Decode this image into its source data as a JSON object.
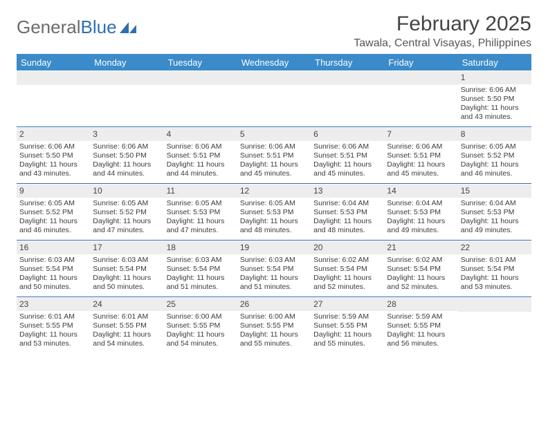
{
  "logo": {
    "text_gray": "General",
    "text_blue": "Blue"
  },
  "title": "February 2025",
  "location": "Tawala, Central Visayas, Philippines",
  "colors": {
    "header_bg": "#3b8bca",
    "header_text": "#ffffff",
    "rule": "#2f6fb2",
    "daynum_bg": "#ededed",
    "text": "#3a3a3a"
  },
  "day_names": [
    "Sunday",
    "Monday",
    "Tuesday",
    "Wednesday",
    "Thursday",
    "Friday",
    "Saturday"
  ],
  "weeks": [
    [
      null,
      null,
      null,
      null,
      null,
      null,
      {
        "n": "1",
        "sr": "Sunrise: 6:06 AM",
        "ss": "Sunset: 5:50 PM",
        "dl": "Daylight: 11 hours and 43 minutes."
      }
    ],
    [
      {
        "n": "2",
        "sr": "Sunrise: 6:06 AM",
        "ss": "Sunset: 5:50 PM",
        "dl": "Daylight: 11 hours and 43 minutes."
      },
      {
        "n": "3",
        "sr": "Sunrise: 6:06 AM",
        "ss": "Sunset: 5:50 PM",
        "dl": "Daylight: 11 hours and 44 minutes."
      },
      {
        "n": "4",
        "sr": "Sunrise: 6:06 AM",
        "ss": "Sunset: 5:51 PM",
        "dl": "Daylight: 11 hours and 44 minutes."
      },
      {
        "n": "5",
        "sr": "Sunrise: 6:06 AM",
        "ss": "Sunset: 5:51 PM",
        "dl": "Daylight: 11 hours and 45 minutes."
      },
      {
        "n": "6",
        "sr": "Sunrise: 6:06 AM",
        "ss": "Sunset: 5:51 PM",
        "dl": "Daylight: 11 hours and 45 minutes."
      },
      {
        "n": "7",
        "sr": "Sunrise: 6:06 AM",
        "ss": "Sunset: 5:51 PM",
        "dl": "Daylight: 11 hours and 45 minutes."
      },
      {
        "n": "8",
        "sr": "Sunrise: 6:05 AM",
        "ss": "Sunset: 5:52 PM",
        "dl": "Daylight: 11 hours and 46 minutes."
      }
    ],
    [
      {
        "n": "9",
        "sr": "Sunrise: 6:05 AM",
        "ss": "Sunset: 5:52 PM",
        "dl": "Daylight: 11 hours and 46 minutes."
      },
      {
        "n": "10",
        "sr": "Sunrise: 6:05 AM",
        "ss": "Sunset: 5:52 PM",
        "dl": "Daylight: 11 hours and 47 minutes."
      },
      {
        "n": "11",
        "sr": "Sunrise: 6:05 AM",
        "ss": "Sunset: 5:53 PM",
        "dl": "Daylight: 11 hours and 47 minutes."
      },
      {
        "n": "12",
        "sr": "Sunrise: 6:05 AM",
        "ss": "Sunset: 5:53 PM",
        "dl": "Daylight: 11 hours and 48 minutes."
      },
      {
        "n": "13",
        "sr": "Sunrise: 6:04 AM",
        "ss": "Sunset: 5:53 PM",
        "dl": "Daylight: 11 hours and 48 minutes."
      },
      {
        "n": "14",
        "sr": "Sunrise: 6:04 AM",
        "ss": "Sunset: 5:53 PM",
        "dl": "Daylight: 11 hours and 49 minutes."
      },
      {
        "n": "15",
        "sr": "Sunrise: 6:04 AM",
        "ss": "Sunset: 5:53 PM",
        "dl": "Daylight: 11 hours and 49 minutes."
      }
    ],
    [
      {
        "n": "16",
        "sr": "Sunrise: 6:03 AM",
        "ss": "Sunset: 5:54 PM",
        "dl": "Daylight: 11 hours and 50 minutes."
      },
      {
        "n": "17",
        "sr": "Sunrise: 6:03 AM",
        "ss": "Sunset: 5:54 PM",
        "dl": "Daylight: 11 hours and 50 minutes."
      },
      {
        "n": "18",
        "sr": "Sunrise: 6:03 AM",
        "ss": "Sunset: 5:54 PM",
        "dl": "Daylight: 11 hours and 51 minutes."
      },
      {
        "n": "19",
        "sr": "Sunrise: 6:03 AM",
        "ss": "Sunset: 5:54 PM",
        "dl": "Daylight: 11 hours and 51 minutes."
      },
      {
        "n": "20",
        "sr": "Sunrise: 6:02 AM",
        "ss": "Sunset: 5:54 PM",
        "dl": "Daylight: 11 hours and 52 minutes."
      },
      {
        "n": "21",
        "sr": "Sunrise: 6:02 AM",
        "ss": "Sunset: 5:54 PM",
        "dl": "Daylight: 11 hours and 52 minutes."
      },
      {
        "n": "22",
        "sr": "Sunrise: 6:01 AM",
        "ss": "Sunset: 5:54 PM",
        "dl": "Daylight: 11 hours and 53 minutes."
      }
    ],
    [
      {
        "n": "23",
        "sr": "Sunrise: 6:01 AM",
        "ss": "Sunset: 5:55 PM",
        "dl": "Daylight: 11 hours and 53 minutes."
      },
      {
        "n": "24",
        "sr": "Sunrise: 6:01 AM",
        "ss": "Sunset: 5:55 PM",
        "dl": "Daylight: 11 hours and 54 minutes."
      },
      {
        "n": "25",
        "sr": "Sunrise: 6:00 AM",
        "ss": "Sunset: 5:55 PM",
        "dl": "Daylight: 11 hours and 54 minutes."
      },
      {
        "n": "26",
        "sr": "Sunrise: 6:00 AM",
        "ss": "Sunset: 5:55 PM",
        "dl": "Daylight: 11 hours and 55 minutes."
      },
      {
        "n": "27",
        "sr": "Sunrise: 5:59 AM",
        "ss": "Sunset: 5:55 PM",
        "dl": "Daylight: 11 hours and 55 minutes."
      },
      {
        "n": "28",
        "sr": "Sunrise: 5:59 AM",
        "ss": "Sunset: 5:55 PM",
        "dl": "Daylight: 11 hours and 56 minutes."
      },
      null
    ]
  ]
}
